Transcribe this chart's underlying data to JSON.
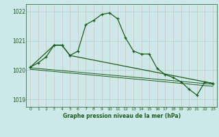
{
  "bg_color": "#cde8e8",
  "line_color": "#1a5c1a",
  "grid_color_h": "#b0cccc",
  "grid_color_v": "#e8b8b8",
  "title": "Graphe pression niveau de la mer (hPa)",
  "xlim": [
    -0.5,
    23.5
  ],
  "ylim": [
    1018.75,
    1022.25
  ],
  "yticks": [
    1019,
    1020,
    1021,
    1022
  ],
  "xticks": [
    0,
    1,
    2,
    3,
    4,
    5,
    6,
    7,
    8,
    9,
    10,
    11,
    12,
    13,
    14,
    15,
    16,
    17,
    18,
    19,
    20,
    21,
    22,
    23
  ],
  "main_x": [
    0,
    1,
    2,
    3,
    4,
    5,
    6,
    7,
    8,
    9,
    10,
    11,
    12,
    13,
    14,
    15,
    16,
    17,
    18,
    19,
    20,
    21,
    22,
    23
  ],
  "main_y": [
    1020.1,
    1020.25,
    1020.45,
    1020.85,
    1020.85,
    1020.5,
    1020.65,
    1021.55,
    1021.7,
    1021.9,
    1021.95,
    1021.75,
    1021.1,
    1020.65,
    1020.55,
    1020.55,
    1020.05,
    1019.85,
    1019.75,
    1019.6,
    1019.35,
    1019.15,
    1019.6,
    1019.55
  ],
  "line2_x": [
    0,
    3,
    4,
    5,
    23
  ],
  "line2_y": [
    1020.1,
    1020.85,
    1020.85,
    1020.5,
    1019.55
  ],
  "line3_x": [
    0,
    23
  ],
  "line3_y": [
    1020.08,
    1019.52
  ],
  "line4_x": [
    0,
    23
  ],
  "line4_y": [
    1020.03,
    1019.45
  ]
}
